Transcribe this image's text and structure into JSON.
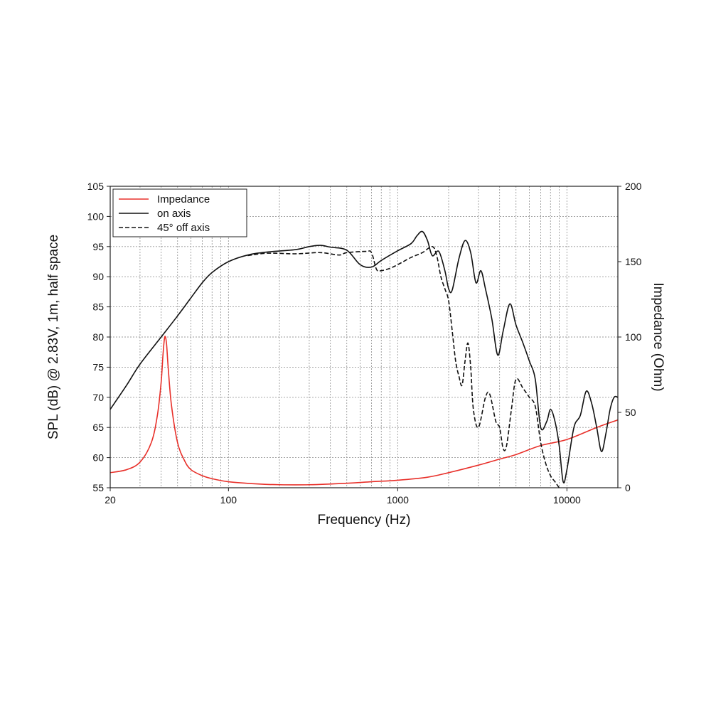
{
  "chart_data": {
    "type": "line",
    "xlabel": "Frequency (Hz)",
    "ylabel_left": "SPL (dB) @ 2.83V, 1m, half space",
    "ylabel_right": "Impedance (Ohm)",
    "x_scale": "log",
    "xlim": [
      20,
      20000
    ],
    "ylim_left": [
      55,
      105
    ],
    "ylim_right": [
      0,
      200
    ],
    "x_tick_labels": [
      "20",
      "100",
      "1000",
      "10000"
    ],
    "x_tick_values": [
      20,
      100,
      1000,
      10000
    ],
    "y_left_ticks": [
      55,
      60,
      65,
      70,
      75,
      80,
      85,
      90,
      95,
      100,
      105
    ],
    "y_right_ticks": [
      0,
      50,
      100,
      150,
      200
    ],
    "grid": true,
    "legend_position": "top-left",
    "colors": {
      "impedance": "#e8302a",
      "on_axis": "#111111",
      "off_axis": "#111111"
    },
    "series": [
      {
        "name": "Impedance",
        "axis": "right",
        "style": "solid",
        "color": "#e8302a",
        "points": [
          [
            20,
            10
          ],
          [
            25,
            12
          ],
          [
            30,
            17
          ],
          [
            35,
            30
          ],
          [
            38,
            48
          ],
          [
            40,
            70
          ],
          [
            41,
            88
          ],
          [
            42,
            100
          ],
          [
            43,
            96
          ],
          [
            44,
            80
          ],
          [
            46,
            55
          ],
          [
            50,
            30
          ],
          [
            55,
            18
          ],
          [
            60,
            12
          ],
          [
            70,
            8
          ],
          [
            80,
            6
          ],
          [
            100,
            4
          ],
          [
            150,
            2.5
          ],
          [
            200,
            2
          ],
          [
            300,
            2
          ],
          [
            500,
            3
          ],
          [
            700,
            4
          ],
          [
            1000,
            5
          ],
          [
            1500,
            7
          ],
          [
            2000,
            10
          ],
          [
            3000,
            15
          ],
          [
            4000,
            19
          ],
          [
            5000,
            22
          ],
          [
            7000,
            28
          ],
          [
            10000,
            32
          ],
          [
            15000,
            40
          ],
          [
            20000,
            45
          ]
        ]
      },
      {
        "name": "on axis",
        "axis": "left",
        "style": "solid",
        "color": "#111111",
        "points": [
          [
            20,
            68
          ],
          [
            25,
            72
          ],
          [
            30,
            75.5
          ],
          [
            40,
            80
          ],
          [
            50,
            83.5
          ],
          [
            60,
            86.5
          ],
          [
            70,
            89
          ],
          [
            80,
            90.7
          ],
          [
            100,
            92.5
          ],
          [
            130,
            93.6
          ],
          [
            170,
            94.1
          ],
          [
            250,
            94.5
          ],
          [
            300,
            95
          ],
          [
            350,
            95.2
          ],
          [
            400,
            94.9
          ],
          [
            500,
            94.4
          ],
          [
            600,
            92
          ],
          [
            700,
            91.6
          ],
          [
            800,
            92.7
          ],
          [
            1000,
            94.3
          ],
          [
            1200,
            95.5
          ],
          [
            1300,
            96.8
          ],
          [
            1400,
            97.5
          ],
          [
            1500,
            96
          ],
          [
            1600,
            93.5
          ],
          [
            1750,
            94.2
          ],
          [
            1900,
            91
          ],
          [
            2000,
            88
          ],
          [
            2100,
            87.8
          ],
          [
            2300,
            93
          ],
          [
            2500,
            96
          ],
          [
            2700,
            94
          ],
          [
            2900,
            89
          ],
          [
            3100,
            91
          ],
          [
            3300,
            88
          ],
          [
            3600,
            83
          ],
          [
            3900,
            77
          ],
          [
            4200,
            81
          ],
          [
            4600,
            85.5
          ],
          [
            5000,
            82
          ],
          [
            5500,
            79
          ],
          [
            6000,
            76
          ],
          [
            6500,
            73
          ],
          [
            7000,
            65
          ],
          [
            7600,
            66
          ],
          [
            8000,
            68
          ],
          [
            8500,
            66
          ],
          [
            9000,
            62
          ],
          [
            9500,
            56
          ],
          [
            10000,
            58
          ],
          [
            11000,
            65
          ],
          [
            12000,
            67
          ],
          [
            13000,
            71
          ],
          [
            14000,
            69
          ],
          [
            15000,
            65
          ],
          [
            16000,
            61
          ],
          [
            17000,
            64
          ],
          [
            18000,
            68
          ],
          [
            19000,
            70
          ],
          [
            20000,
            70
          ]
        ]
      },
      {
        "name": "45° off axis",
        "axis": "left",
        "style": "dashed",
        "color": "#111111",
        "points": [
          [
            130,
            93.5
          ],
          [
            170,
            93.9
          ],
          [
            250,
            93.8
          ],
          [
            350,
            94
          ],
          [
            450,
            93.6
          ],
          [
            500,
            94
          ],
          [
            650,
            94.2
          ],
          [
            700,
            94
          ],
          [
            750,
            91.2
          ],
          [
            800,
            91
          ],
          [
            900,
            91.4
          ],
          [
            1000,
            92
          ],
          [
            1200,
            93.2
          ],
          [
            1400,
            94
          ],
          [
            1600,
            95
          ],
          [
            1700,
            93.5
          ],
          [
            1800,
            90
          ],
          [
            1900,
            88
          ],
          [
            2000,
            86
          ],
          [
            2100,
            81
          ],
          [
            2200,
            76
          ],
          [
            2300,
            73.5
          ],
          [
            2400,
            72
          ],
          [
            2500,
            76
          ],
          [
            2600,
            79
          ],
          [
            2700,
            75
          ],
          [
            2800,
            68
          ],
          [
            3000,
            65
          ],
          [
            3300,
            70
          ],
          [
            3500,
            70.5
          ],
          [
            3800,
            66
          ],
          [
            4000,
            65
          ],
          [
            4200,
            61.5
          ],
          [
            4400,
            62
          ],
          [
            4700,
            68
          ],
          [
            5000,
            73
          ],
          [
            5500,
            71.5
          ],
          [
            6000,
            70
          ],
          [
            6500,
            68.5
          ],
          [
            7000,
            62.5
          ],
          [
            7500,
            59
          ],
          [
            8000,
            57
          ],
          [
            8500,
            56
          ],
          [
            9000,
            55
          ]
        ]
      }
    ]
  }
}
